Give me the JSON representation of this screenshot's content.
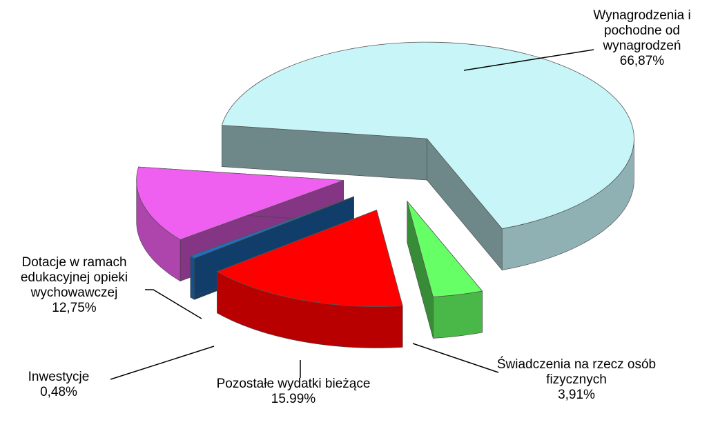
{
  "chart_data": {
    "type": "pie",
    "categories": [
      "Wynagrodzenia i pochodne od wynagrodzeń",
      "Świadczenia na rzecz osób fizycznych",
      "Pozostałe wydatki bieżące",
      "Inwestycje",
      "Dotacje w ramach edukacyjnej opieki wychowawczej"
    ],
    "values": [
      66.87,
      3.91,
      15.99,
      0.48,
      12.75
    ],
    "value_labels": [
      "66,87%",
      "3,91%",
      "15.99%",
      "0,48%",
      "12,75%"
    ],
    "colors": [
      "#c8f6f8",
      "#66ff66",
      "#ff0000",
      "#1f6fc0",
      "#f060f0"
    ]
  }
}
